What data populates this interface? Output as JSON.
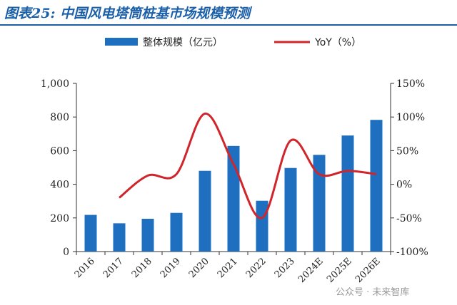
{
  "header": {
    "figure_label": "图表25:",
    "title": "中国风电塔筒桩基市场规模预测"
  },
  "watermark": {
    "text": "公众号 · 未来智库"
  },
  "colors": {
    "bar": "#1f6fc0",
    "line": "#d0252a",
    "title": "#1a5fa8"
  },
  "chart_data": {
    "type": "bar",
    "categories": [
      "2016",
      "2017",
      "2018",
      "2019",
      "2020",
      "2021",
      "2022",
      "2023",
      "2024E",
      "2025E",
      "2026E"
    ],
    "series": [
      {
        "name": "整体规模（亿元）",
        "type": "bar",
        "axis": "left",
        "values": [
          218,
          168,
          195,
          230,
          480,
          628,
          302,
          497,
          575,
          690,
          783
        ]
      },
      {
        "name": "YoY（%）",
        "type": "line",
        "axis": "right",
        "values_percent": [
          null,
          -20,
          13,
          15,
          105,
          30,
          -50,
          65,
          15,
          20,
          15
        ]
      }
    ],
    "ylim_left": [
      0,
      1000
    ],
    "yticks_left": [
      "0",
      "200",
      "400",
      "600",
      "800",
      "1,000"
    ],
    "ylim_right_percent": [
      -100,
      150
    ],
    "yticks_right": [
      "-100%",
      "-50%",
      "0%",
      "50%",
      "100%",
      "150%"
    ],
    "legend_position": "top"
  }
}
